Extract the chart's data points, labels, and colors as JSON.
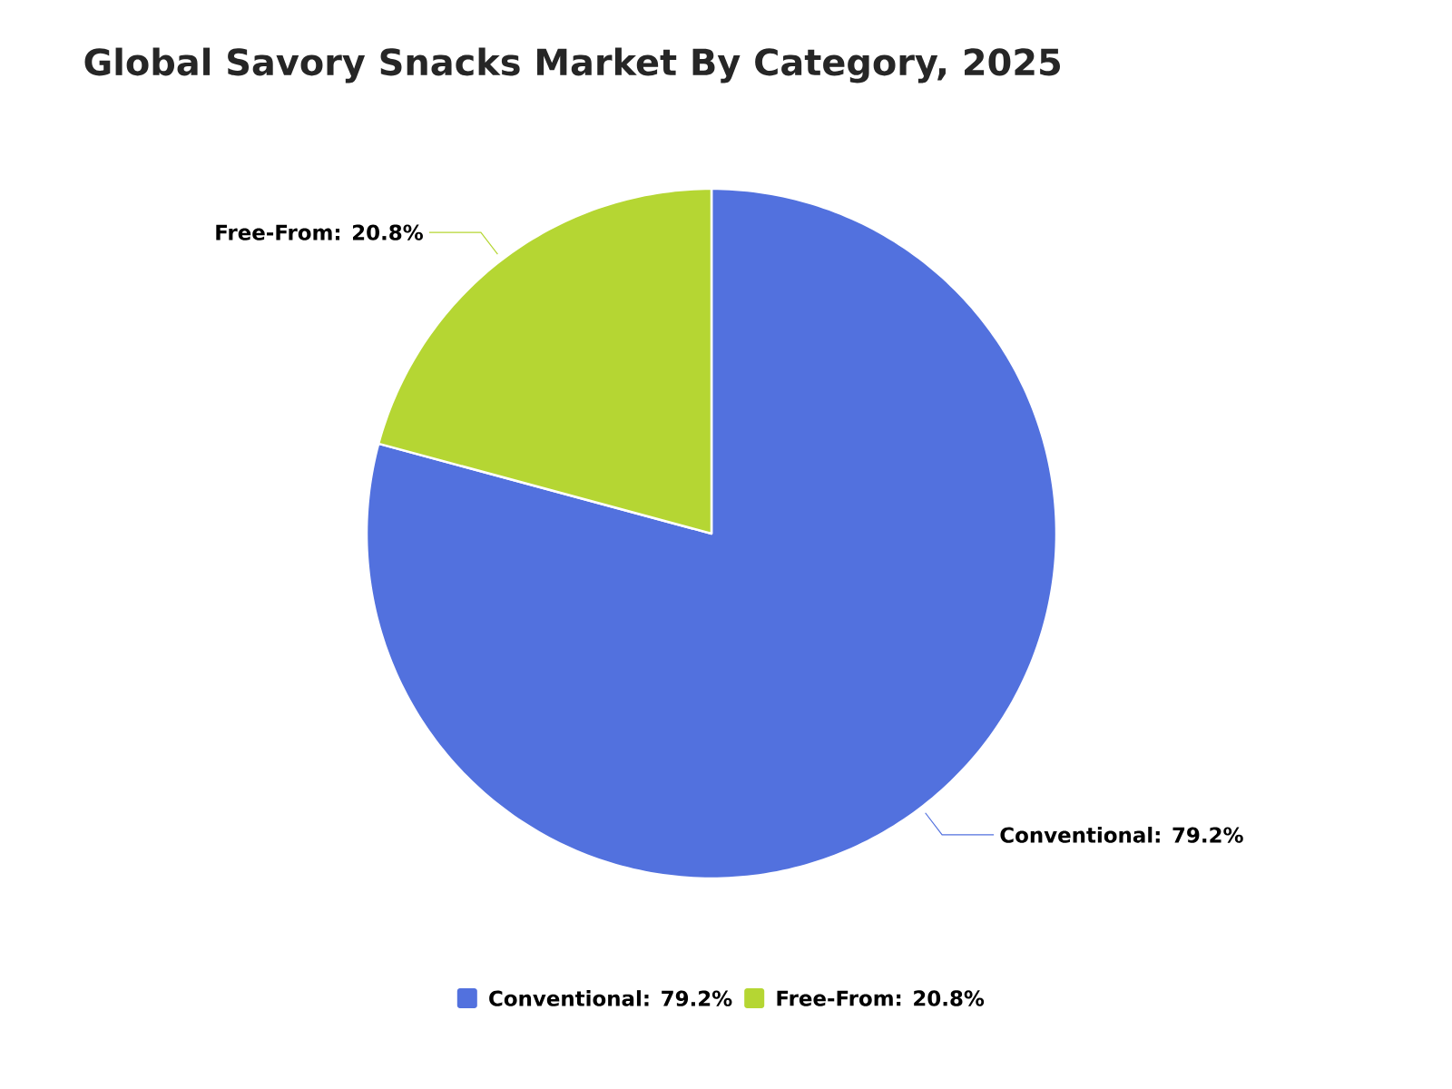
{
  "chart_data": {
    "type": "pie",
    "title": "Global Savory Snacks Market By Category, 2025",
    "categories": [
      "Conventional: 79.2%",
      "Free-From: 20.8%"
    ],
    "values": [
      79.2,
      20.8
    ],
    "colors": [
      "#5271de",
      "#b5d633"
    ],
    "legend": "bottom"
  }
}
